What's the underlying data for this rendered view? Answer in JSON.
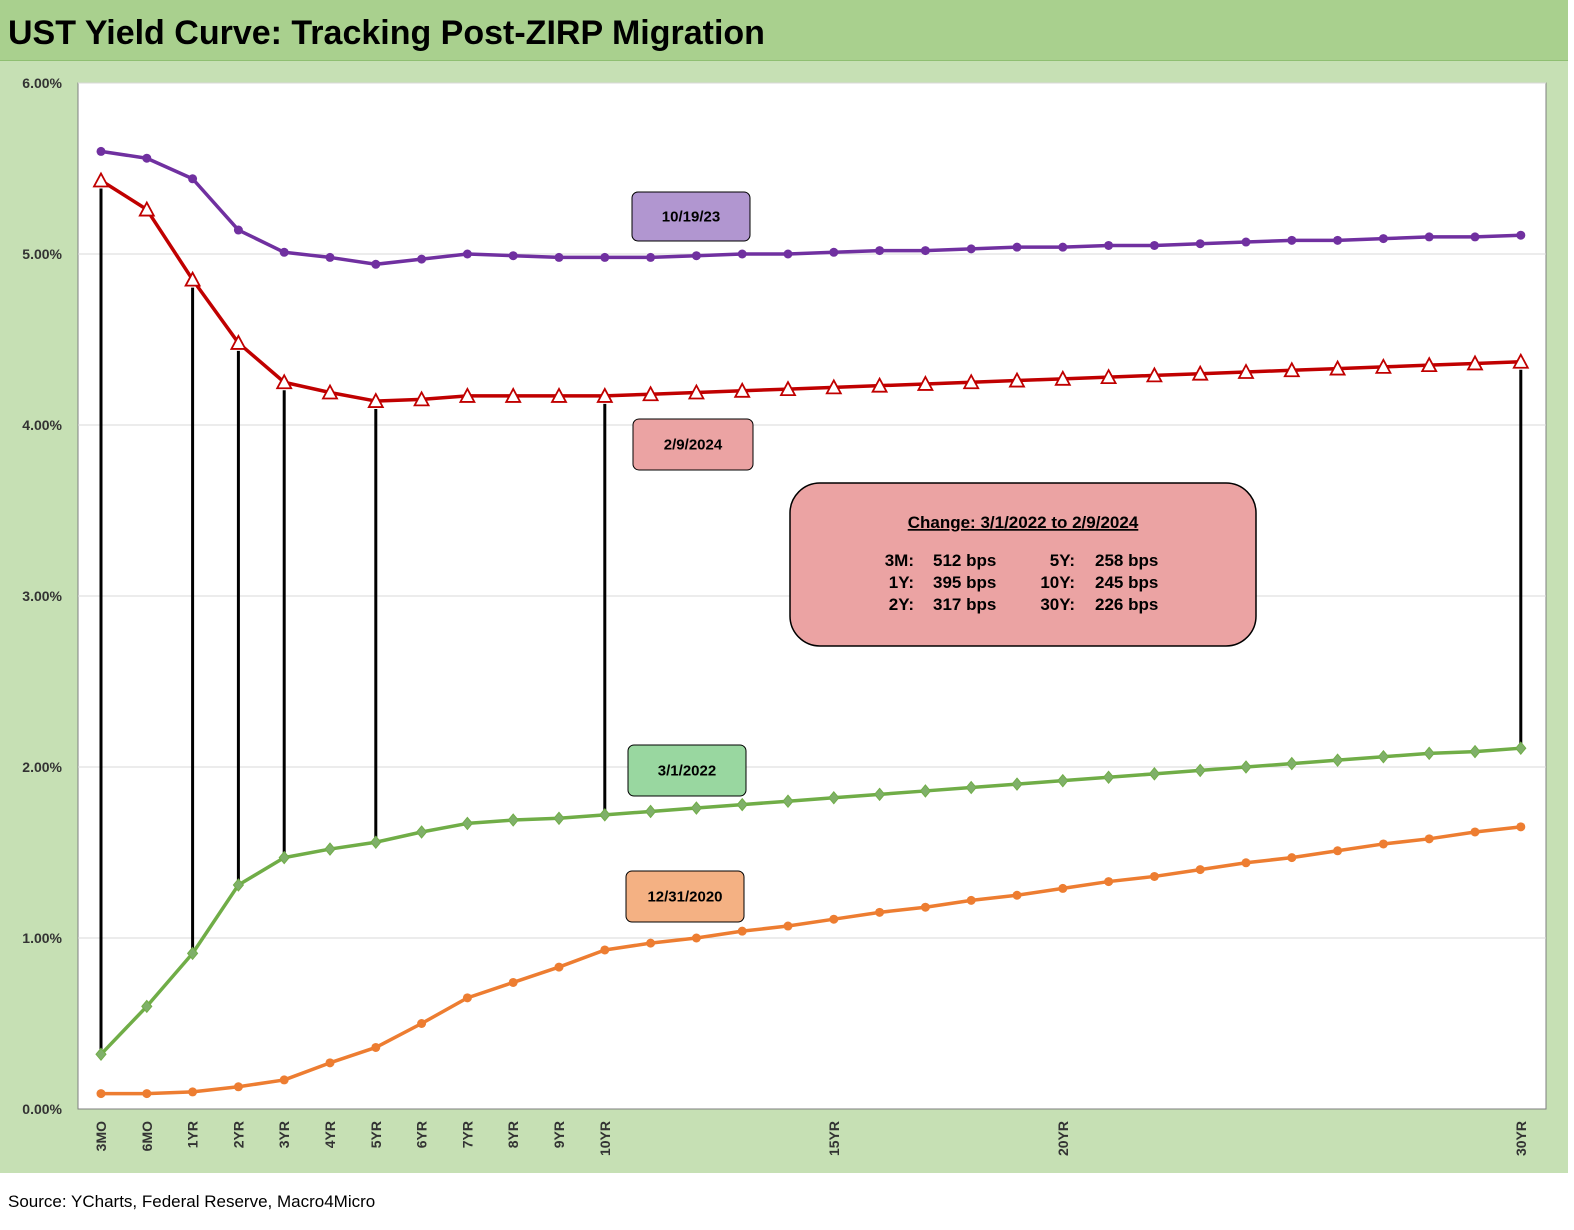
{
  "title": "UST Yield Curve: Tracking Post-ZIRP Migration",
  "source": "Source: YCharts, Federal Reserve, Macro4Micro",
  "chart_data": {
    "type": "line",
    "title": "UST Yield Curve: Tracking Post-ZIRP Migration",
    "xlabel": "",
    "ylabel": "",
    "ylim": [
      0,
      6
    ],
    "y_ticks": [
      "0.00%",
      "1.00%",
      "2.00%",
      "3.00%",
      "4.00%",
      "5.00%",
      "6.00%"
    ],
    "grid": "horizontal",
    "x_labels": [
      "3MO",
      "6MO",
      "1YR",
      "2YR",
      "3YR",
      "4YR",
      "5YR",
      "6YR",
      "7YR",
      "8YR",
      "9YR",
      "10YR",
      "",
      "",
      "",
      "",
      "15YR",
      "",
      "",
      "",
      "",
      "20YR",
      "",
      "",
      "",
      "",
      "",
      "",
      "",
      "",
      "",
      "30YR"
    ],
    "series": [
      {
        "name": "10/19/23",
        "color": "#7030a0",
        "fill": "#b196d0",
        "marker": "circle",
        "values": [
          5.6,
          5.56,
          5.44,
          5.14,
          5.01,
          4.98,
          4.94,
          4.97,
          5.0,
          4.99,
          4.98,
          4.98,
          4.98,
          4.99,
          5.0,
          5.0,
          5.01,
          5.02,
          5.02,
          5.03,
          5.04,
          5.04,
          5.05,
          5.05,
          5.06,
          5.07,
          5.08,
          5.08,
          5.09,
          5.1,
          5.1,
          5.11
        ]
      },
      {
        "name": "2/9/2024",
        "color": "#c00000",
        "fill": "#eba3a3",
        "marker": "triangle",
        "values": [
          5.43,
          5.26,
          4.85,
          4.48,
          4.25,
          4.19,
          4.14,
          4.15,
          4.17,
          4.17,
          4.17,
          4.17,
          4.18,
          4.19,
          4.2,
          4.21,
          4.22,
          4.23,
          4.24,
          4.25,
          4.26,
          4.27,
          4.28,
          4.29,
          4.3,
          4.31,
          4.32,
          4.33,
          4.34,
          4.35,
          4.36,
          4.37
        ]
      },
      {
        "name": "3/1/2022",
        "color": "#70ad47",
        "fill": "#99d7a0",
        "marker": "diamond",
        "values": [
          0.32,
          0.6,
          0.91,
          1.31,
          1.47,
          1.52,
          1.56,
          1.62,
          1.67,
          1.69,
          1.7,
          1.72,
          1.74,
          1.76,
          1.78,
          1.8,
          1.82,
          1.84,
          1.86,
          1.88,
          1.9,
          1.92,
          1.94,
          1.96,
          1.98,
          2.0,
          2.02,
          2.04,
          2.06,
          2.08,
          2.09,
          2.11
        ]
      },
      {
        "name": "12/31/2020",
        "color": "#ed7d31",
        "fill": "#f4b183",
        "marker": "circle",
        "values": [
          0.09,
          0.09,
          0.1,
          0.13,
          0.17,
          0.27,
          0.36,
          0.5,
          0.65,
          0.74,
          0.83,
          0.93,
          0.97,
          1.0,
          1.04,
          1.07,
          1.11,
          1.15,
          1.18,
          1.22,
          1.25,
          1.29,
          1.33,
          1.36,
          1.4,
          1.44,
          1.47,
          1.51,
          1.55,
          1.58,
          1.62,
          1.65
        ]
      }
    ],
    "change_connectors": [
      "3MO",
      "1YR",
      "2YR",
      "3YR",
      "5YR",
      "10YR",
      "30YR"
    ],
    "change_box": {
      "title": "Change: 3/1/2022 to 2/9/2024",
      "rows": [
        [
          "3M:",
          "512 bps",
          "5Y:",
          "258 bps"
        ],
        [
          "1Y:",
          "395 bps",
          "10Y:",
          "245 bps"
        ],
        [
          "2Y:",
          "317 bps",
          "30Y:",
          "226 bps"
        ]
      ]
    }
  }
}
